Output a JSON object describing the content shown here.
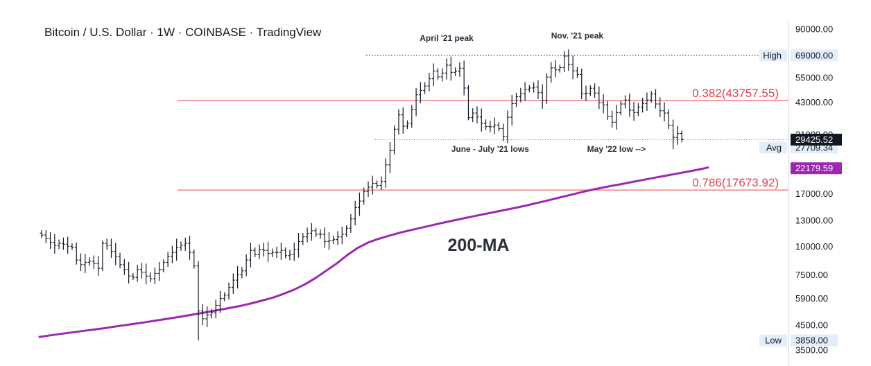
{
  "title": "Bitcoin / U.S. Dollar · 1W · COINBASE · TradingView",
  "colors": {
    "candle": "#131722",
    "fib_line": "#e5404a",
    "ma_line": "#9c27b0",
    "label_bg": "#e3eefa",
    "price_badge_bg": "#131722",
    "ma_badge_bg": "#9c27b0"
  },
  "chart_data": {
    "type": "line",
    "scale": "log",
    "ylim": [
      3300,
      120000
    ],
    "y_ticks": [
      "90000.00",
      "55000.00",
      "43000.00",
      "31000.00",
      "17000.00",
      "13000.00",
      "10000.00",
      "7500.00",
      "5900.00",
      "4500.00",
      "3500.00"
    ],
    "price_levels": [
      {
        "label": "High",
        "value": "69000.00",
        "y": 69000
      },
      {
        "label": "Avg",
        "value": "27709.34",
        "y": 27709.34
      },
      {
        "label": "Low",
        "value": "3858.00",
        "y": 3858
      }
    ],
    "current_price": {
      "value": "29425.52",
      "y": 29425.52
    },
    "ma_value": {
      "value": "22179.59",
      "y": 22179.59
    },
    "fib_levels": [
      {
        "label": "0.382(43757.55)",
        "y": 43757.55
      },
      {
        "label": "0.786(17673.92)",
        "y": 17673.92
      }
    ],
    "annotations": [
      {
        "text": "April '21 peak",
        "x": 93,
        "y": 80000
      },
      {
        "text": "Nov. '21 peak",
        "x": 123,
        "y": 82000
      },
      {
        "text": "June - July '21 lows",
        "x": 103,
        "y": 26000
      },
      {
        "text": "May '22 low -->",
        "x": 132,
        "y": 26000
      }
    ],
    "ma_annotation": "200-MA",
    "series": [
      {
        "type": "price",
        "x_start": 0,
        "x_step": 1,
        "values": [
          11200,
          10800,
          10400,
          10100,
          10300,
          10200,
          10000,
          9900,
          8700,
          8300,
          8500,
          8600,
          8400,
          8000,
          10300,
          10100,
          9500,
          9000,
          8300,
          7900,
          7400,
          7300,
          7900,
          7700,
          7400,
          7200,
          7600,
          7900,
          8500,
          9000,
          9400,
          9900,
          10100,
          10300,
          9400,
          8200,
          5200,
          4800,
          5000,
          5100,
          5500,
          5900,
          6100,
          6600,
          7100,
          7500,
          7800,
          8700,
          9600,
          9200,
          9700,
          9600,
          9300,
          9400,
          9400,
          9600,
          9100,
          9200,
          9700,
          10500,
          11000,
          11400,
          11700,
          11300,
          11300,
          10500,
          10600,
          10700,
          11000,
          11300,
          12000,
          13200,
          14800,
          15800,
          17400,
          18200,
          18900,
          18500,
          19300,
          22800,
          26300,
          32700,
          37800,
          33700,
          34700,
          39800,
          46300,
          48400,
          50600,
          54500,
          58900,
          55500,
          57700,
          62500,
          58100,
          58800,
          60600,
          49600,
          36800,
          38500,
          37000,
          34700,
          33600,
          33500,
          34100,
          32900,
          30300,
          36900,
          42400,
          45400,
          46900,
          48800,
          49600,
          50100,
          47300,
          43800,
          55400,
          60800,
          59600,
          61000,
          68500,
          63000,
          59000,
          56900,
          46800,
          47000,
          49500,
          47100,
          42800,
          41800,
          37200,
          35100,
          38700,
          42200,
          43900,
          39600,
          38700,
          40900,
          42400,
          43900,
          46700,
          42200,
          39400,
          38500,
          34000,
          30100,
          31300,
          29425.52
        ]
      },
      {
        "type": "ma",
        "name": "200-MA",
        "x_start": 0,
        "x_step": 1,
        "values": [
          4000,
          4060,
          4120,
          4180,
          4240,
          4300,
          4360,
          4430,
          4500,
          4570,
          4640,
          4720,
          4800,
          4880,
          4970,
          5060,
          5160,
          5260,
          5370,
          5480,
          5620,
          5780,
          5950,
          6180,
          6450,
          6800,
          7250,
          7800,
          8400,
          9150,
          9850,
          10400,
          10800,
          11150,
          11480,
          11780,
          12080,
          12380,
          12680,
          12980,
          13280,
          13580,
          13880,
          14180,
          14480,
          14800,
          15160,
          15540,
          15940,
          16370,
          16800,
          17250,
          17680,
          18080,
          18460,
          18830,
          19220,
          19620,
          20020,
          20420,
          20830,
          21240,
          21670,
          22179.59
        ]
      }
    ]
  }
}
